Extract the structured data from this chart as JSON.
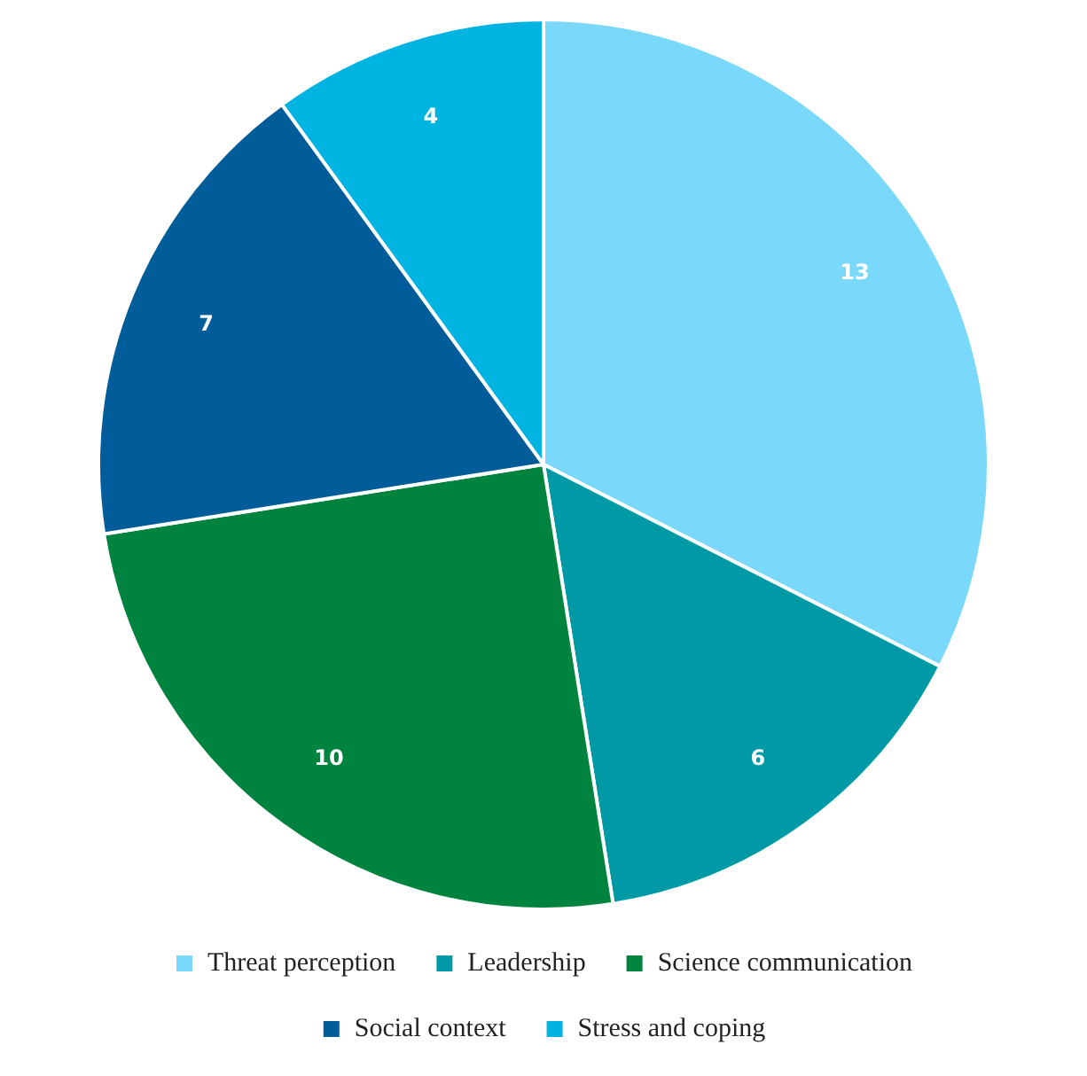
{
  "chart_data": {
    "type": "pie",
    "categories": [
      "Threat perception",
      "Leadership",
      "Science communication",
      "Social context",
      "Stress and coping"
    ],
    "values": [
      13,
      6,
      10,
      7,
      4
    ],
    "colors": [
      "#7ad8fb",
      "#009aa6",
      "#00833e",
      "#005d99",
      "#00b4e2"
    ],
    "data_labels": true,
    "legend": "bottom"
  }
}
